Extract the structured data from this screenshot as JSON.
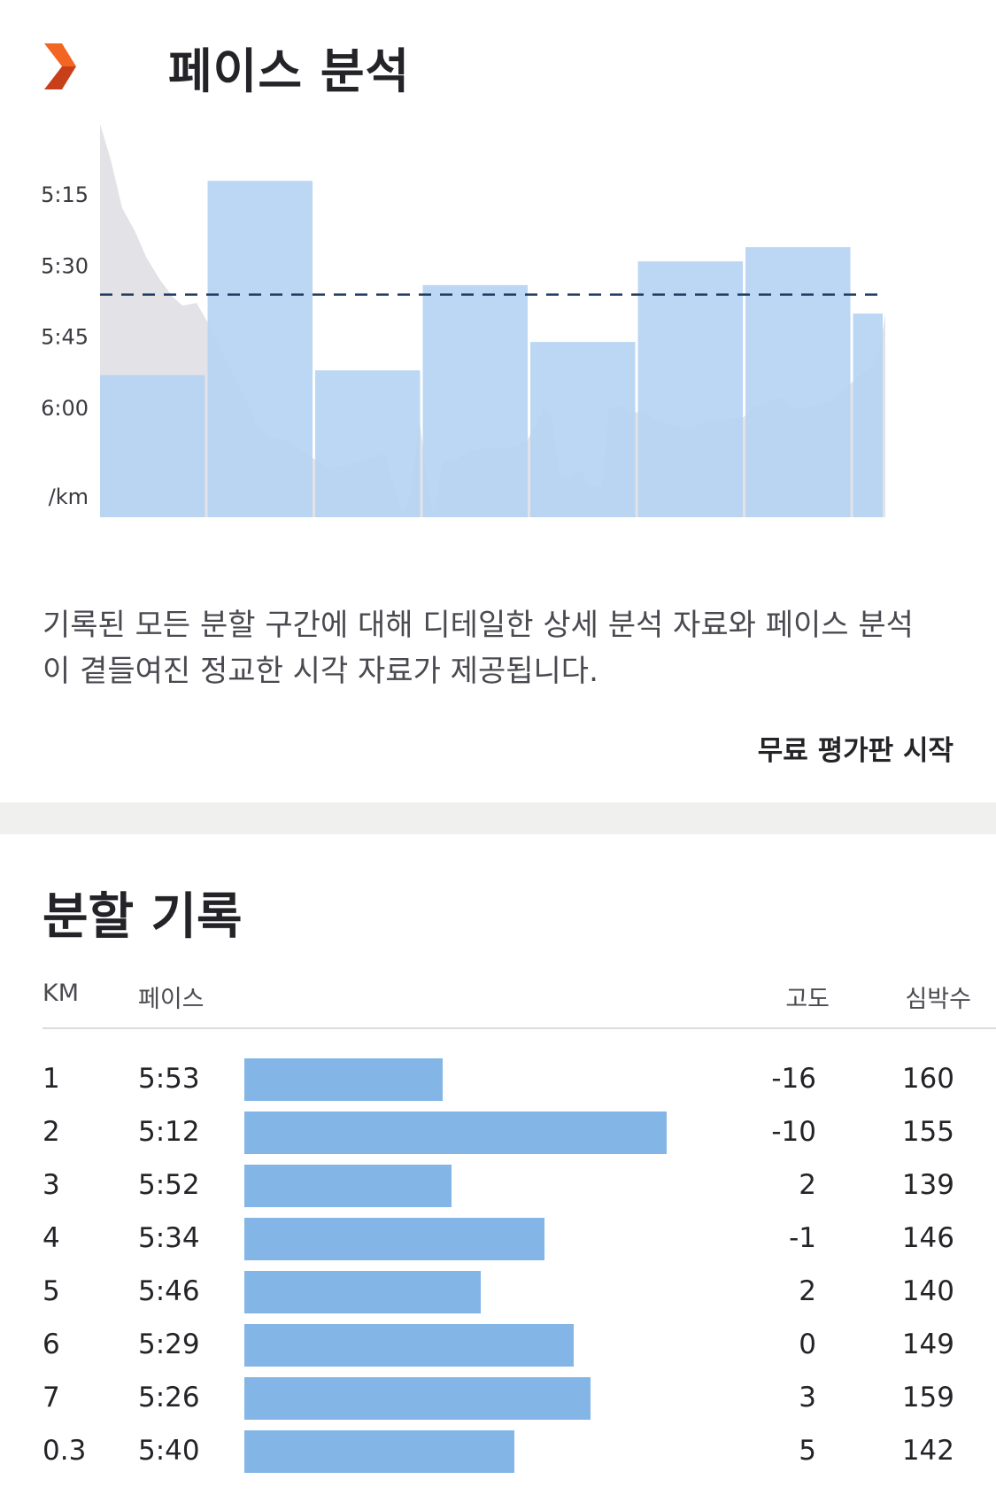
{
  "header": {
    "title": "페이스 분석"
  },
  "chart_data": {
    "type": "bar",
    "ylabel": "/km",
    "y_ticks": [
      "5:15",
      "5:30",
      "5:45",
      "6:00"
    ],
    "y_tick_seconds": [
      315,
      330,
      345,
      360
    ],
    "y_range_seconds": [
      300,
      383
    ],
    "inverted_y": true,
    "categories": [
      "1",
      "2",
      "3",
      "4",
      "5",
      "6",
      "7",
      "0.3"
    ],
    "category_widths_km": [
      1,
      1,
      1,
      1,
      1,
      1,
      1,
      0.3
    ],
    "pace_seconds": [
      353,
      312,
      352,
      334,
      346,
      329,
      326,
      340
    ],
    "average_pace_seconds": 336,
    "elevation_profile_shown": true,
    "colors": {
      "bar": "#b6d4f2",
      "average_line": "#1f3d63",
      "elevation": "#e3e3e7"
    }
  },
  "description": "기록된 모든 분할 구간에 대해 디테일한 상세 분석 자료와 페이스 분석이 곁들여진 정교한 시각 자료가 제공됩니다.",
  "cta_label": "무료 평가판 시작",
  "splits": {
    "title": "분할 기록",
    "columns": {
      "km": "KM",
      "pace": "페이스",
      "elevation": "고도",
      "heart_rate": "심박수"
    },
    "bar_color": "#83b5e6",
    "rows": [
      {
        "km": "1",
        "pace": "5:53",
        "pace_fraction": 0.47,
        "elevation": "-16",
        "heart_rate": "160"
      },
      {
        "km": "2",
        "pace": "5:12",
        "pace_fraction": 1.0,
        "elevation": "-10",
        "heart_rate": "155"
      },
      {
        "km": "3",
        "pace": "5:52",
        "pace_fraction": 0.49,
        "elevation": "2",
        "heart_rate": "139"
      },
      {
        "km": "4",
        "pace": "5:34",
        "pace_fraction": 0.71,
        "elevation": "-1",
        "heart_rate": "146"
      },
      {
        "km": "5",
        "pace": "5:46",
        "pace_fraction": 0.56,
        "elevation": "2",
        "heart_rate": "140"
      },
      {
        "km": "6",
        "pace": "5:29",
        "pace_fraction": 0.78,
        "elevation": "0",
        "heart_rate": "149"
      },
      {
        "km": "7",
        "pace": "5:26",
        "pace_fraction": 0.82,
        "elevation": "3",
        "heart_rate": "159"
      },
      {
        "km": "0.3",
        "pace": "5:40",
        "pace_fraction": 0.64,
        "elevation": "5",
        "heart_rate": "142"
      }
    ]
  }
}
